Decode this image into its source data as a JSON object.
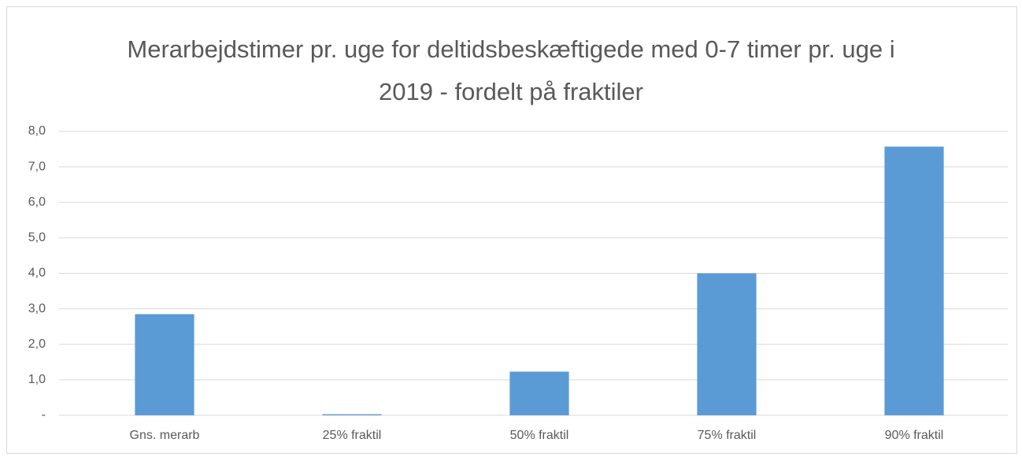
{
  "chart_data": {
    "type": "bar",
    "title": "Merarbejdstimer pr. uge for deltidsbeskæftigede med 0-7 timer pr. uge i 2019 - fordelt på fraktiler",
    "categories": [
      "Gns. merarb",
      "25% fraktil",
      "50% fraktil",
      "75% fraktil",
      "90% fraktil"
    ],
    "values": [
      2.85,
      0.03,
      1.23,
      4.0,
      7.57
    ],
    "color": "#5b9bd5",
    "ylim": [
      0,
      8
    ],
    "yticks": [
      {
        "value": 0,
        "label": "-"
      },
      {
        "value": 1,
        "label": "1,0"
      },
      {
        "value": 2,
        "label": "2,0"
      },
      {
        "value": 3,
        "label": "3,0"
      },
      {
        "value": 4,
        "label": "4,0"
      },
      {
        "value": 5,
        "label": "5,0"
      },
      {
        "value": 6,
        "label": "6,0"
      },
      {
        "value": 7,
        "label": "7,0"
      },
      {
        "value": 8,
        "label": "8,0"
      }
    ],
    "grid": true
  }
}
